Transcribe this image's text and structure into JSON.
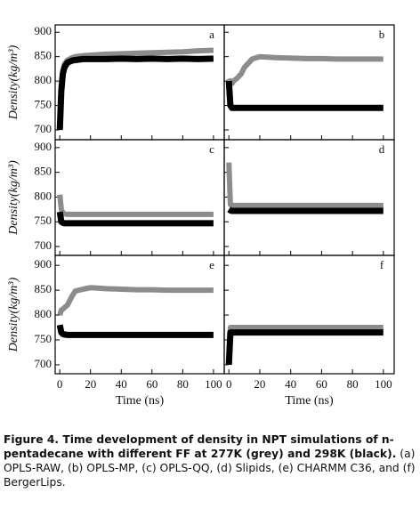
{
  "chart_data": [
    {
      "type": "line",
      "panel": "a",
      "ylabel": "Density(kg/m³)",
      "x": [
        0,
        1,
        2,
        3,
        5,
        8,
        10,
        15,
        20,
        30,
        40,
        50,
        60,
        70,
        80,
        90,
        100
      ],
      "series": [
        {
          "color": "#8c8c8c",
          "values": [
            700,
            790,
            820,
            835,
            843,
            848,
            850,
            852,
            853,
            855,
            856,
            857,
            858,
            859,
            860,
            862,
            863
          ]
        },
        {
          "color": "#000000",
          "values": [
            700,
            780,
            815,
            828,
            838,
            842,
            843,
            845,
            845,
            845,
            846,
            845,
            846,
            845,
            846,
            845,
            846
          ]
        }
      ],
      "xlim": [
        -3,
        107
      ],
      "ylim": [
        680,
        915
      ],
      "xticks": [
        0,
        20,
        40,
        60,
        80,
        100
      ],
      "yticks": [
        700,
        750,
        800,
        850,
        900
      ]
    },
    {
      "type": "line",
      "panel": "b",
      "x": [
        0,
        1,
        2,
        3,
        5,
        8,
        10,
        15,
        20,
        30,
        40,
        50,
        60,
        70,
        80,
        90,
        100
      ],
      "series": [
        {
          "color": "#8c8c8c",
          "values": [
            805,
            795,
            795,
            800,
            805,
            815,
            828,
            845,
            850,
            848,
            847,
            846,
            846,
            845,
            845,
            845,
            845
          ]
        },
        {
          "color": "#000000",
          "values": [
            800,
            750,
            745,
            745,
            745,
            745,
            745,
            745,
            745,
            745,
            745,
            745,
            745,
            745,
            745,
            745,
            745
          ]
        }
      ],
      "xlim": [
        -3,
        107
      ],
      "ylim": [
        680,
        915
      ],
      "xticks": [
        0,
        20,
        40,
        60,
        80,
        100
      ],
      "yticks": [
        700,
        750,
        800,
        850,
        900
      ]
    },
    {
      "type": "line",
      "panel": "c",
      "ylabel": "Density(kg/m³)",
      "x": [
        0,
        1,
        2,
        3,
        5,
        8,
        10,
        15,
        20,
        30,
        40,
        50,
        60,
        70,
        80,
        90,
        100
      ],
      "series": [
        {
          "color": "#8c8c8c",
          "values": [
            805,
            775,
            768,
            766,
            765,
            765,
            765,
            765,
            765,
            765,
            765,
            765,
            765,
            765,
            765,
            765,
            765
          ]
        },
        {
          "color": "#000000",
          "values": [
            770,
            750,
            748,
            747,
            747,
            747,
            747,
            747,
            747,
            747,
            747,
            747,
            747,
            747,
            747,
            747,
            747
          ]
        }
      ],
      "xlim": [
        -3,
        107
      ],
      "ylim": [
        682,
        916
      ],
      "xticks": [
        0,
        20,
        40,
        60,
        80,
        100
      ],
      "yticks": [
        700,
        750,
        800,
        850,
        900
      ]
    },
    {
      "type": "line",
      "panel": "d",
      "x": [
        0,
        1,
        2,
        3,
        5,
        8,
        10,
        15,
        20,
        30,
        40,
        50,
        60,
        70,
        80,
        90,
        100
      ],
      "series": [
        {
          "color": "#8c8c8c",
          "values": [
            870,
            785,
            783,
            783,
            783,
            783,
            783,
            783,
            783,
            783,
            783,
            783,
            783,
            783,
            783,
            783,
            783
          ]
        },
        {
          "color": "#000000",
          "values": [
            775,
            773,
            772,
            772,
            772,
            772,
            772,
            772,
            772,
            772,
            772,
            772,
            772,
            772,
            772,
            772,
            772
          ]
        }
      ],
      "xlim": [
        -3,
        107
      ],
      "ylim": [
        682,
        916
      ],
      "xticks": [
        0,
        20,
        40,
        60,
        80,
        100
      ],
      "yticks": [
        700,
        750,
        800,
        850,
        900
      ]
    },
    {
      "type": "line",
      "panel": "e",
      "ylabel": "Density(kg/m³)",
      "xlabel": "Time (ns)",
      "x": [
        0,
        1,
        2,
        3,
        5,
        8,
        10,
        15,
        20,
        30,
        40,
        50,
        60,
        70,
        80,
        90,
        100
      ],
      "series": [
        {
          "color": "#8c8c8c",
          "values": [
            800,
            810,
            812,
            815,
            820,
            838,
            848,
            852,
            855,
            853,
            852,
            851,
            851,
            850,
            850,
            850,
            850
          ]
        },
        {
          "color": "#000000",
          "values": [
            780,
            765,
            762,
            761,
            760,
            760,
            760,
            760,
            760,
            760,
            760,
            760,
            760,
            760,
            760,
            760,
            760
          ]
        }
      ],
      "xlim": [
        -3,
        107
      ],
      "ylim": [
        682,
        920
      ],
      "xticks": [
        0,
        20,
        40,
        60,
        80,
        100
      ],
      "yticks": [
        700,
        750,
        800,
        850,
        900
      ]
    },
    {
      "type": "line",
      "panel": "f",
      "xlabel": "Time (ns)",
      "x": [
        0,
        1,
        2,
        3,
        5,
        8,
        10,
        15,
        20,
        30,
        40,
        50,
        60,
        70,
        80,
        90,
        100
      ],
      "series": [
        {
          "color": "#8c8c8c",
          "values": [
            700,
            775,
            775,
            775,
            775,
            775,
            775,
            775,
            775,
            775,
            775,
            775,
            775,
            775,
            775,
            775,
            775
          ]
        },
        {
          "color": "#000000",
          "values": [
            700,
            765,
            765,
            765,
            765,
            765,
            765,
            765,
            765,
            765,
            765,
            765,
            765,
            765,
            765,
            765,
            765
          ]
        }
      ],
      "xlim": [
        -3,
        107
      ],
      "ylim": [
        682,
        920
      ],
      "xticks": [
        0,
        20,
        40,
        60,
        80,
        100
      ],
      "yticks": [
        700,
        750,
        800,
        850,
        900
      ]
    }
  ],
  "caption": {
    "title": "Figure 4. Time development of density in NPT simulations of n-pentadecane with different FF at 277K (grey) and 298K (black).",
    "text": "(a) OPLS-RAW, (b) OPLS-MP, (c) OPLS-QQ, (d) Slipids, (e) CHARMM C36, and (f) BergerLips."
  }
}
